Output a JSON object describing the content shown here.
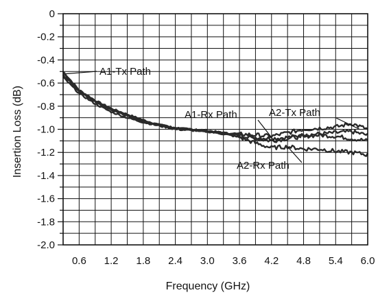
{
  "chart_data": {
    "type": "line",
    "xlabel": "Frequency (GHz)",
    "ylabel": "Insertion Loss (dB)",
    "xlim": [
      0.3,
      6.0
    ],
    "ylim": [
      -2.0,
      0
    ],
    "x_tick_labels": [
      "0.6",
      "1.2",
      "1.8",
      "2.4",
      "3.0",
      "3.6",
      "4.2",
      "4.8",
      "5.4",
      "6.0"
    ],
    "y_tick_labels": [
      "0",
      "-0.2",
      "-0.4",
      "-0.6",
      "-0.8",
      "-1.0",
      "-1.2",
      "-1.4",
      "-1.6",
      "-1.8",
      "-2.0"
    ],
    "grid": true,
    "series": [
      {
        "name": "A1-Tx Path",
        "x": [
          0.3,
          0.6,
          0.9,
          1.2,
          1.5,
          1.8,
          2.1,
          2.4,
          2.7,
          3.0,
          3.3,
          3.6,
          3.9,
          4.2,
          4.5,
          4.8,
          5.1,
          5.4,
          5.7,
          6.0
        ],
        "y": [
          -0.5,
          -0.66,
          -0.75,
          -0.82,
          -0.87,
          -0.92,
          -0.96,
          -0.99,
          -1.0,
          -1.01,
          -1.03,
          -1.05,
          -1.07,
          -1.08,
          -1.07,
          -1.05,
          -1.04,
          -1.03,
          -1.02,
          -1.05
        ]
      },
      {
        "name": "A1-Rx Path",
        "x": [
          0.3,
          0.6,
          0.9,
          1.2,
          1.5,
          1.8,
          2.1,
          2.4,
          2.7,
          3.0,
          3.3,
          3.6,
          3.9,
          4.2,
          4.5,
          4.8,
          5.1,
          5.4,
          5.7,
          6.0
        ],
        "y": [
          -0.53,
          -0.67,
          -0.76,
          -0.83,
          -0.88,
          -0.93,
          -0.96,
          -0.99,
          -1.0,
          -1.02,
          -1.04,
          -1.06,
          -1.08,
          -1.1,
          -1.08,
          -1.06,
          -1.05,
          -1.06,
          -1.08,
          -1.1
        ]
      },
      {
        "name": "A2-Tx Path",
        "x": [
          0.3,
          0.6,
          0.9,
          1.2,
          1.5,
          1.8,
          2.1,
          2.4,
          2.7,
          3.0,
          3.3,
          3.6,
          3.9,
          4.2,
          4.5,
          4.8,
          5.1,
          5.4,
          5.7,
          6.0
        ],
        "y": [
          -0.51,
          -0.67,
          -0.76,
          -0.83,
          -0.88,
          -0.93,
          -0.96,
          -0.99,
          -1.0,
          -1.02,
          -1.03,
          -1.04,
          -1.05,
          -1.06,
          -1.03,
          -1.0,
          -0.99,
          -0.98,
          -0.95,
          -1.0
        ]
      },
      {
        "name": "A2-Rx Path",
        "x": [
          0.3,
          0.6,
          0.9,
          1.2,
          1.5,
          1.8,
          2.1,
          2.4,
          2.7,
          3.0,
          3.3,
          3.6,
          3.9,
          4.2,
          4.5,
          4.8,
          5.1,
          5.4,
          5.7,
          6.0
        ],
        "y": [
          -0.55,
          -0.69,
          -0.78,
          -0.85,
          -0.9,
          -0.94,
          -0.97,
          -1.0,
          -1.01,
          -1.02,
          -1.04,
          -1.07,
          -1.12,
          -1.16,
          -1.15,
          -1.17,
          -1.17,
          -1.19,
          -1.2,
          -1.22
        ]
      }
    ],
    "annotations": [
      {
        "text": "A1-Tx Path",
        "series": "A1-Tx Path",
        "target": [
          0.35,
          -0.52
        ]
      },
      {
        "text": "A1-Rx Path",
        "series": "A1-Rx Path",
        "target": [
          4.25,
          -1.1
        ]
      },
      {
        "text": "A2-Tx Path",
        "series": "A2-Tx Path",
        "target": [
          5.85,
          -1.0
        ]
      },
      {
        "text": "A2-Rx Path",
        "series": "A2-Rx Path",
        "target": [
          4.5,
          -1.15
        ]
      }
    ],
    "line_color": "#2a2a2a"
  }
}
